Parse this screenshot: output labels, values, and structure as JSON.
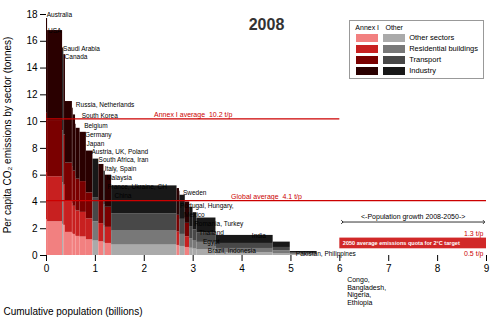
{
  "chart_data": {
    "type": "bar",
    "title": "2008",
    "xlabel": "Cumulative population (billions)",
    "ylabel": "Per capita CO₂ emissions by sector (tonnes)",
    "xlim": [
      0,
      9
    ],
    "xticks": [
      0,
      1,
      2,
      3,
      4,
      5,
      6,
      7,
      8,
      9
    ],
    "ylim": [
      0,
      18
    ],
    "yticks": [
      0,
      2,
      4,
      6,
      8,
      10,
      12,
      14,
      16,
      18
    ],
    "grid": false,
    "stacked": true,
    "widths": [
      0.022,
      0.307,
      0.025,
      0.034,
      0.142,
      0.016,
      0.048,
      0.011,
      0.082,
      0.128,
      0.135,
      0.12,
      0.105,
      0.027,
      0.13,
      1.338,
      0.05,
      0.009,
      0.11,
      0.09,
      0.068,
      0.079,
      0.39,
      1.17,
      0.35,
      0.55
    ],
    "bar_groups": [
      "Annex I",
      "Annex I",
      "Other",
      "Annex I",
      "Annex I",
      "Annex I",
      "Annex I",
      "Annex I",
      "Annex I",
      "Annex I",
      "Annex I",
      "Other",
      "Annex I",
      "Other",
      "Annex I",
      "Other",
      "Annex I",
      "Annex I",
      "Other",
      "Annex I",
      "Other",
      "Other",
      "Other",
      "Other",
      "Other",
      "Other"
    ],
    "group_colors": [
      {
        "name": "Annex I",
        "colors": [
          "#f28080",
          "#c82020",
          "#7a0000",
          "#2a0000"
        ]
      },
      {
        "name": "Other",
        "colors": [
          "#aaaaaa",
          "#787878",
          "#484848",
          "#181818"
        ]
      }
    ],
    "series": [
      {
        "name": "Other sectors",
        "values": [
          2.655,
          2.52,
          2.325,
          2.25,
          1.725,
          1.65,
          1.575,
          1.47,
          1.425,
          1.38,
          1.17,
          1.08,
          1.02,
          0.945,
          0.9,
          0.78,
          0.75,
          0.72,
          0.675,
          0.6,
          0.54,
          0.48,
          0.42,
          0.225,
          0.15,
          0.045
        ]
      },
      {
        "name": "Residential buildings",
        "values": [
          3.54,
          3.36,
          3.1,
          3.0,
          2.3,
          2.2,
          2.1,
          1.96,
          1.9,
          1.84,
          1.56,
          1.44,
          1.36,
          1.26,
          1.2,
          1.04,
          1.0,
          0.96,
          0.9,
          0.8,
          0.72,
          0.64,
          0.56,
          0.3,
          0.2,
          0.06
        ]
      },
      {
        "name": "Transport",
        "values": [
          4.425,
          4.2,
          3.875,
          3.75,
          2.875,
          2.75,
          2.625,
          2.45,
          2.375,
          2.3,
          1.95,
          1.8,
          1.7,
          1.575,
          1.5,
          1.3,
          1.25,
          1.2,
          1.125,
          1.0,
          0.9,
          0.8,
          0.7,
          0.375,
          0.25,
          0.075
        ]
      },
      {
        "name": "Industry",
        "values": [
          7.08,
          6.72,
          6.2,
          6.0,
          4.6,
          4.4,
          4.2,
          3.92,
          3.8,
          3.68,
          3.12,
          2.88,
          2.72,
          2.52,
          2.4,
          2.08,
          2.0,
          1.92,
          1.8,
          1.6,
          1.44,
          1.28,
          1.12,
          0.6,
          0.4,
          0.12
        ]
      }
    ],
    "lines": [
      {
        "y": 10.2,
        "x": [
          0,
          6.0
        ],
        "color": "#cc0000",
        "label": "Annex I average  10.2 t/p"
      },
      {
        "y": 4.1,
        "x": [
          0,
          9.0
        ],
        "color": "#cc0000",
        "label": "Global average  4.1 t/p"
      }
    ],
    "band": {
      "x": [
        6.0,
        9.0
      ],
      "y": [
        0.5,
        1.3
      ],
      "color": "#cc1111",
      "label_color": "#cc0000",
      "label": "2050 average emissions quota for 2°C target",
      "top_label": "1.3 t/p",
      "bottom_label": "0.5 t/p"
    },
    "arrow": {
      "x": [
        6.05,
        8.95
      ],
      "y": 2.5,
      "label": "<-Population growth 2008-2050->"
    },
    "country_labels": [
      {
        "x": 0.005,
        "y": 17.8,
        "text": "Australia"
      },
      {
        "x": 0.03,
        "y": 16.6,
        "text": "USA"
      },
      {
        "x": 0.34,
        "y": 15.3,
        "text": "Saudi Arabia"
      },
      {
        "x": 0.37,
        "y": 14.7,
        "text": "Canada"
      },
      {
        "x": 0.6,
        "y": 11.1,
        "text": "Russia, Netherlands"
      },
      {
        "x": 0.72,
        "y": 10.3,
        "text": "South Korea"
      },
      {
        "x": 0.77,
        "y": 9.55,
        "text": "Belgium"
      },
      {
        "x": 0.785,
        "y": 9.2,
        "text": "Germany"
      },
      {
        "x": 0.82,
        "y": 8.9,
        "text": "Japan"
      },
      {
        "x": 0.92,
        "y": 7.58,
        "text": "Austria, UK, Poland"
      },
      {
        "x": 1.065,
        "y": 6.98,
        "text": "South Africa, Iran"
      },
      {
        "x": 1.19,
        "y": 6.55,
        "text": "Italy, Spain"
      },
      {
        "x": 1.22,
        "y": 6.08,
        "text": "Malaysia"
      },
      {
        "x": 1.25,
        "y": 5.75,
        "text": "France, Ukraine, CH"
      },
      {
        "x": 1.39,
        "y": 5.0,
        "text": "China"
      },
      {
        "x": 2.73,
        "y": 4.82,
        "text": "Portugal, Hungary,"
      },
      {
        "x": 2.79,
        "y": 4.55,
        "text": "Sweden"
      },
      {
        "x": 2.815,
        "y": 4.25,
        "text": "Mexico"
      },
      {
        "x": 3.02,
        "y": 3.82,
        "text": "Romania, Turkey"
      },
      {
        "x": 3.12,
        "y": 3.42,
        "text": "Thailand"
      },
      {
        "x": 3.2,
        "y": 3.02,
        "text": "Egypt"
      },
      {
        "x": 3.3,
        "y": 2.6,
        "text": "Brazil, Indonesia"
      },
      {
        "x": 4.2,
        "y": 1.32,
        "text": "India"
      },
      {
        "x": 5.1,
        "y": 0.82,
        "text": "Pakistan, Philippines"
      }
    ],
    "axis_note": {
      "text": "Congo,\nBangladesh,\nNigeria,\nEthiopia",
      "x": 6.15
    }
  }
}
